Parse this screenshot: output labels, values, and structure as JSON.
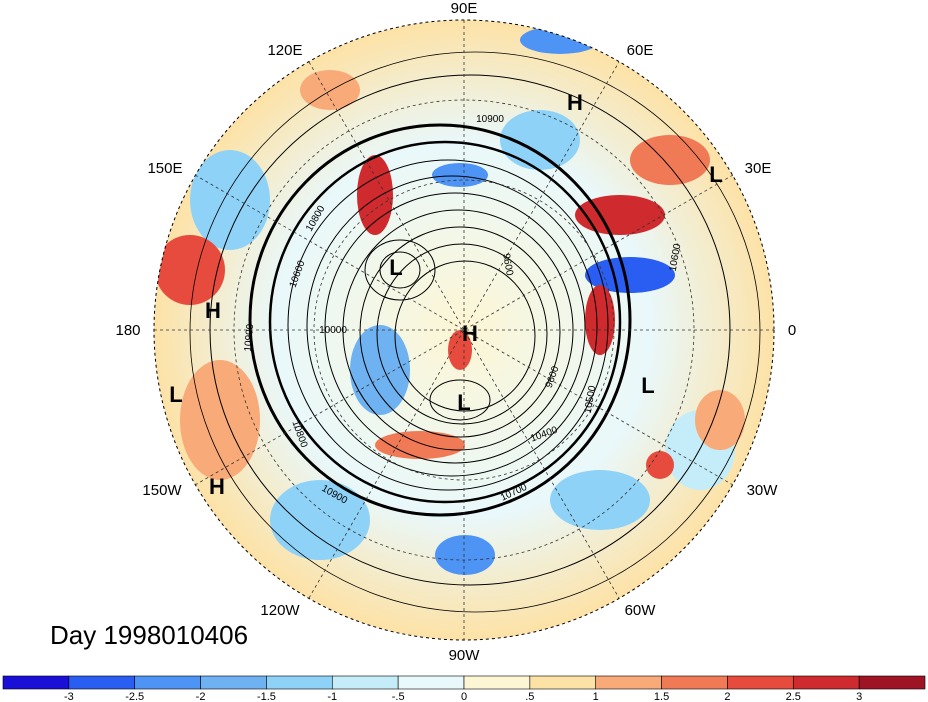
{
  "title": "Day 1998010406",
  "grid_labels": {
    "top": "90E",
    "upper_left": "120E",
    "upper_right": "60E",
    "left_upper": "150E",
    "right_upper": "30E",
    "left": "180",
    "right": "0",
    "left_lower": "150W",
    "right_lower": "30W",
    "lower_left": "120W",
    "lower_right": "60W",
    "bottom": "90W"
  },
  "pressure_centers": [
    {
      "name": "h-upper-right",
      "text": "H"
    },
    {
      "name": "l-right-upper",
      "text": "L"
    },
    {
      "name": "l-center",
      "text": "L"
    },
    {
      "name": "h-center",
      "text": "H"
    },
    {
      "name": "l-lower-center",
      "text": "L"
    },
    {
      "name": "h-left",
      "text": "H"
    },
    {
      "name": "l-left",
      "text": "L"
    },
    {
      "name": "h-lower-left",
      "text": "H"
    },
    {
      "name": "l-right-lower",
      "text": "L"
    }
  ],
  "contour_labels": [
    "10900",
    "10600",
    "10800",
    "10000",
    "9600",
    "9600",
    "10400",
    "10500",
    "10700",
    "10900",
    "10800",
    "10600",
    "10900"
  ],
  "colorbar": {
    "colors": [
      "#1a0fd6",
      "#2a5ef2",
      "#4d94f5",
      "#6fb2f2",
      "#8fd2f7",
      "#c4edf9",
      "#e9f8fb",
      "#fdf6d4",
      "#fde2a6",
      "#f8aa78",
      "#f07a55",
      "#e74b3d",
      "#cf2a2e",
      "#9f1425"
    ],
    "labels": [
      "-3",
      "-2.5",
      "-2",
      "-1.5",
      "-1",
      "-.5",
      "0",
      ".5",
      "1",
      "1.5",
      "2",
      "2.5",
      "3"
    ]
  }
}
